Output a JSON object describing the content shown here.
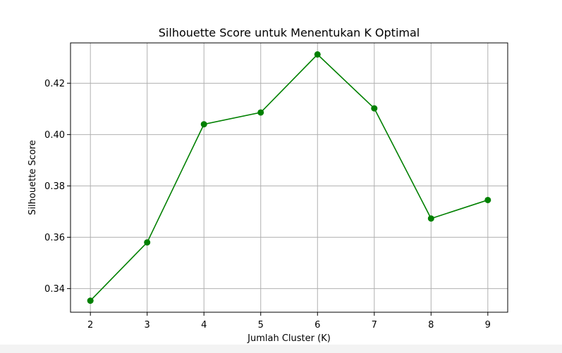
{
  "chart_data": {
    "type": "line",
    "title": "Silhouette Score untuk Menentukan K Optimal",
    "xlabel": "Jumlah Cluster (K)",
    "ylabel": "Silhouette Score",
    "x": [
      2,
      3,
      4,
      5,
      6,
      7,
      8,
      9
    ],
    "series": [
      {
        "values": [
          0.3353,
          0.358,
          0.404,
          0.4086,
          0.4312,
          0.4102,
          0.3673,
          0.3745
        ],
        "color": "#008000",
        "marker": "circle"
      }
    ],
    "xlim": [
      1.65,
      9.35
    ],
    "ylim": [
      0.3308,
      0.4357
    ],
    "xticks": [
      2,
      3,
      4,
      5,
      6,
      7,
      8,
      9
    ],
    "yticks": [
      0.34,
      0.36,
      0.38,
      0.4,
      0.42
    ],
    "ytick_labels": [
      "0.34",
      "0.36",
      "0.38",
      "0.40",
      "0.42"
    ],
    "grid": true
  }
}
